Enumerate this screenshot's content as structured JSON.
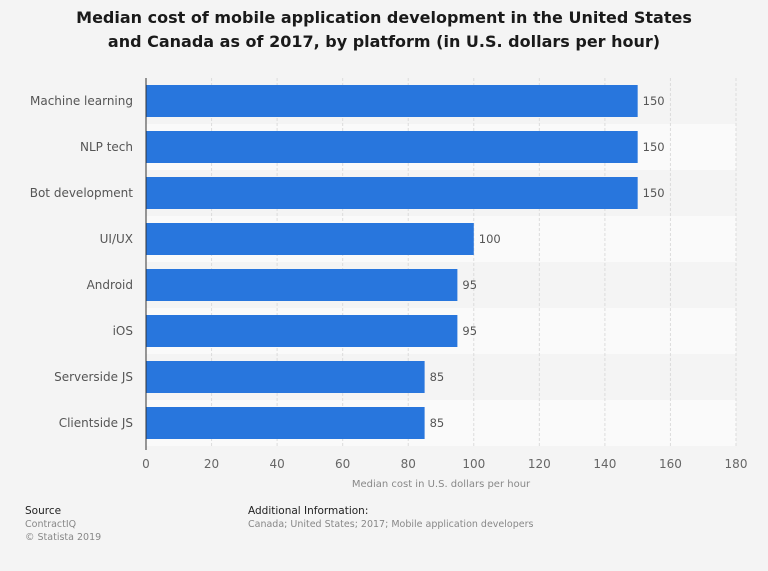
{
  "chart_data": {
    "type": "bar",
    "orientation": "horizontal",
    "title": "Median cost of mobile application development in the United States and Canada as of 2017, by platform (in U.S. dollars per hour)",
    "categories": [
      "Machine learning",
      "NLP tech",
      "Bot development",
      "UI/UX",
      "Android",
      "iOS",
      "Serverside JS",
      "Clientside JS"
    ],
    "values": [
      150,
      150,
      150,
      100,
      95,
      95,
      85,
      85
    ],
    "xlabel": "Median cost in U.S. dollars per hour",
    "ylabel": "",
    "xlim": [
      0,
      180
    ],
    "xticks": [
      0,
      20,
      40,
      60,
      80,
      100,
      120,
      140,
      160,
      180
    ],
    "grid": true,
    "bar_color": "#2876dd"
  },
  "footer": {
    "source_label": "Source",
    "source_value": "ContractIQ",
    "copyright": "© Statista 2019",
    "additional_label": "Additional Information:",
    "additional_value": "Canada; United States; 2017; Mobile application developers"
  }
}
